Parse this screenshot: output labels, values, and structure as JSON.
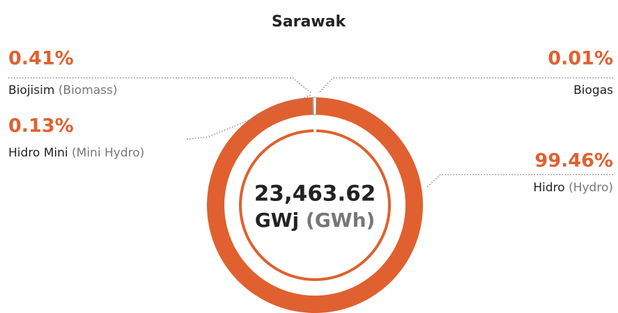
{
  "chart_data": {
    "type": "donut",
    "title": "Sarawak",
    "categories": [
      "Biogas",
      "Hidro",
      "Hidro Mini",
      "Biojisim"
    ],
    "translations": [
      null,
      "(Hydro)",
      "(Mini Hydro)",
      "(Biomass)"
    ],
    "values": [
      0.01,
      99.46,
      0.13,
      0.41
    ],
    "value_labels": [
      "0.01%",
      "99.46%",
      "0.13%",
      "0.41%"
    ],
    "colors": [
      "#ffffff",
      "#e0602f",
      "#ffffff",
      "#ffffff"
    ],
    "center_value": "23,463.62",
    "center_unit": "GWj",
    "center_unit_translation": "(GWh)"
  }
}
